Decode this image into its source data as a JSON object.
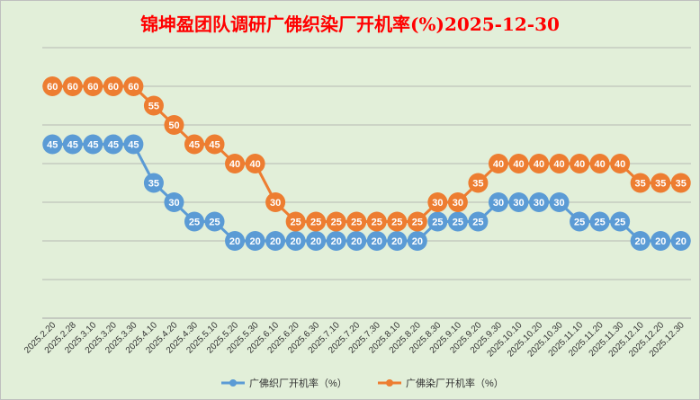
{
  "chart_data": {
    "type": "line",
    "title": "锦坤盈团队调研广佛织染厂开机率(%)2025-12-30",
    "categories": [
      "2025.2.20",
      "2025.2.28",
      "2025.3.10",
      "2025.3.20",
      "2025.3.30",
      "2025.4.10",
      "2025.4.20",
      "2025.4.30",
      "2025.5.10",
      "2025.5.20",
      "2025.5.30",
      "2025.6.10",
      "2025.6.20",
      "2025.6.30",
      "2025.7.10",
      "2025.7.20",
      "2025.7.30",
      "2025.8.10",
      "2025.8.20",
      "2025.8.30",
      "2025.9.10",
      "2025.9.20",
      "2025.9.30",
      "2025.10.10",
      "2025.10.20",
      "2025.10.30",
      "2025.11.10",
      "2025.11.20",
      "2025.11.30",
      "2025.12.10",
      "2025.12.20",
      "2025.12.30"
    ],
    "series": [
      {
        "name": "广佛织厂开机率（%）",
        "color": "#5B9BD5",
        "values": [
          45,
          45,
          45,
          45,
          45,
          35,
          30,
          25,
          25,
          20,
          20,
          20,
          20,
          20,
          20,
          20,
          20,
          20,
          20,
          25,
          25,
          25,
          30,
          30,
          30,
          30,
          25,
          25,
          25,
          20,
          20,
          20
        ]
      },
      {
        "name": "广佛染厂开机率（%）",
        "color": "#ED7D31",
        "values": [
          60,
          60,
          60,
          60,
          60,
          55,
          50,
          45,
          45,
          40,
          40,
          30,
          25,
          25,
          25,
          25,
          25,
          25,
          25,
          30,
          30,
          35,
          40,
          40,
          40,
          40,
          40,
          40,
          40,
          35,
          35,
          35
        ]
      }
    ],
    "ylim": [
      0,
      70
    ],
    "grid": true,
    "legend": "bottom",
    "background_color": "#E2EFD9",
    "title_color": "#FF0000"
  }
}
